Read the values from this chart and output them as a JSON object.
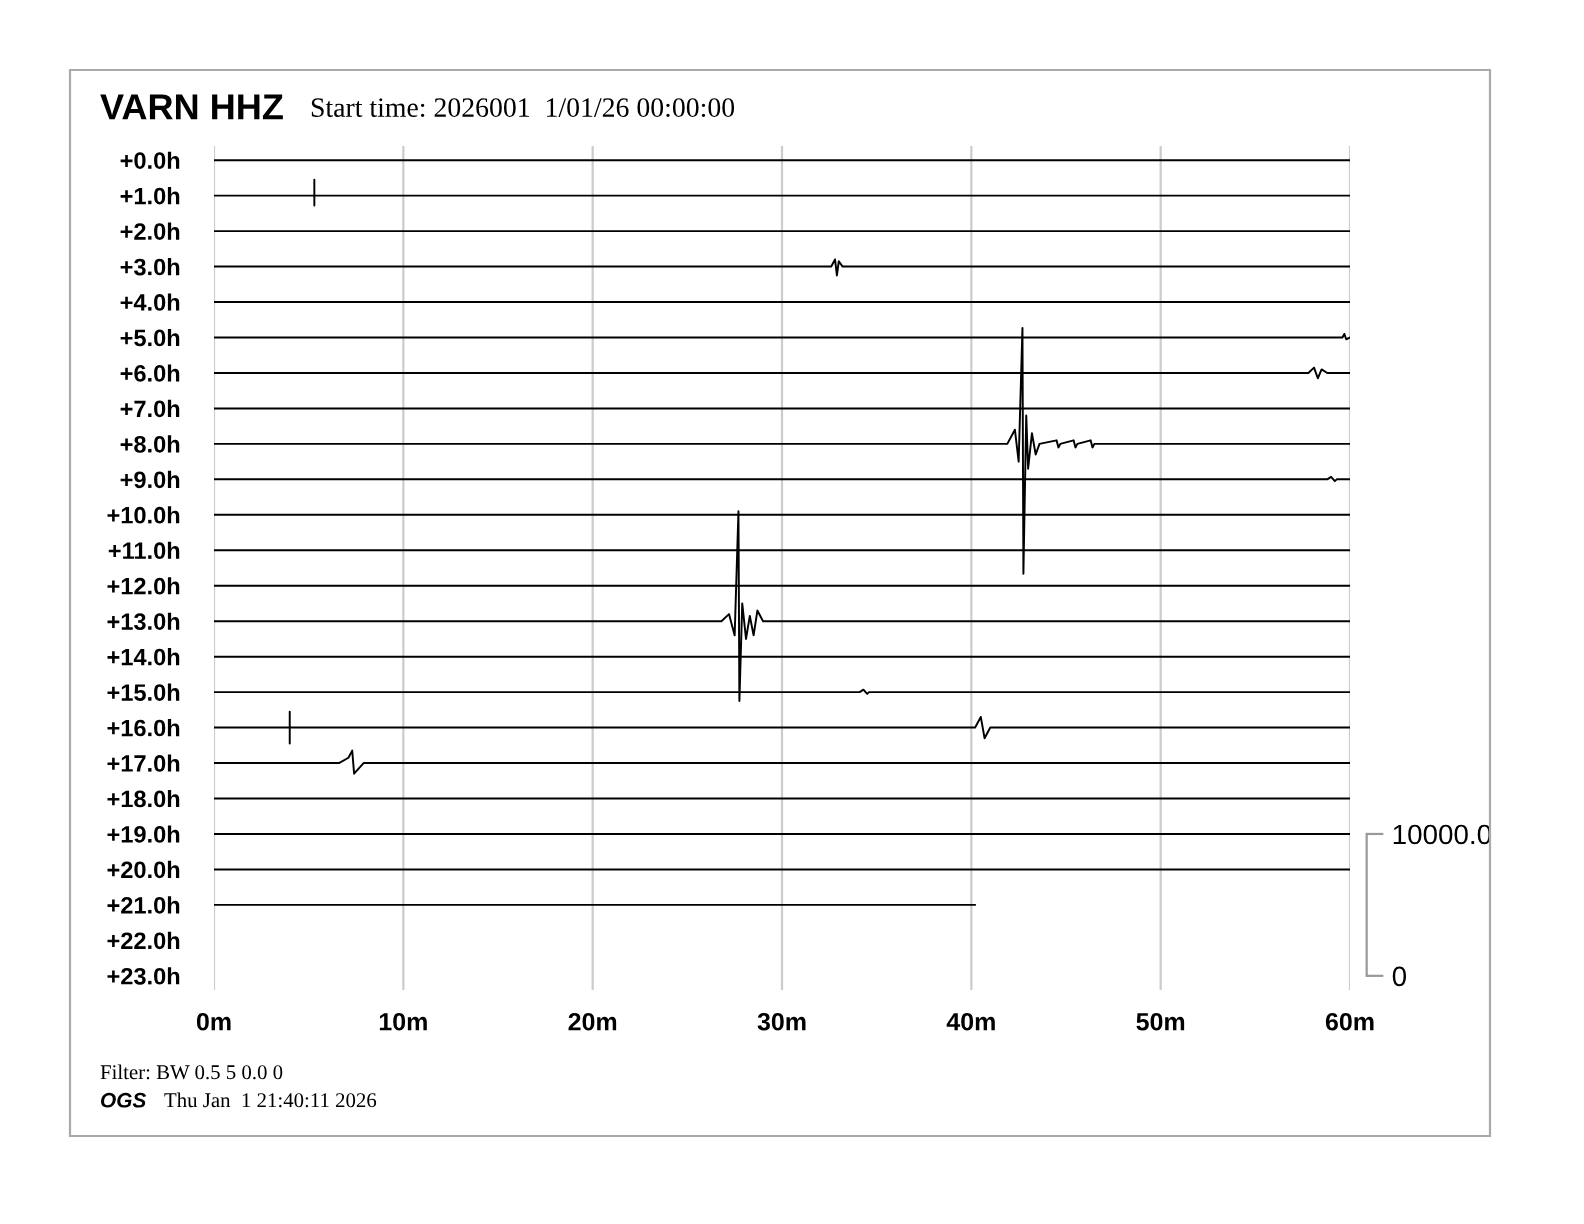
{
  "chart_data": {
    "type": "line",
    "title": "VARN HHZ",
    "subtitle": "Start time: 2026001  1/01/26 00:00:00",
    "annotations": [
      "Filter: BW 0.5 5 0.0 0",
      "OGS",
      "Thu Jan  1 21:40:11 2026"
    ],
    "xlim": [
      0,
      60
    ],
    "xticks": [
      {
        "value": 0,
        "label": "0m"
      },
      {
        "value": 10,
        "label": "10m"
      },
      {
        "value": 20,
        "label": "20m"
      },
      {
        "value": 30,
        "label": "30m"
      },
      {
        "value": 40,
        "label": "40m"
      },
      {
        "value": 50,
        "label": "50m"
      },
      {
        "value": 60,
        "label": "60m"
      }
    ],
    "ylim": [
      23.4,
      -0.4
    ],
    "yticks": [
      {
        "value": 0,
        "label": "+0.0h"
      },
      {
        "value": 1,
        "label": "+1.0h"
      },
      {
        "value": 2,
        "label": "+2.0h"
      },
      {
        "value": 3,
        "label": "+3.0h"
      },
      {
        "value": 4,
        "label": "+4.0h"
      },
      {
        "value": 5,
        "label": "+5.0h"
      },
      {
        "value": 6,
        "label": "+6.0h"
      },
      {
        "value": 7,
        "label": "+7.0h"
      },
      {
        "value": 8,
        "label": "+8.0h"
      },
      {
        "value": 9,
        "label": "+9.0h"
      },
      {
        "value": 10,
        "label": "+10.0h"
      },
      {
        "value": 11,
        "label": "+11.0h"
      },
      {
        "value": 12,
        "label": "+12.0h"
      },
      {
        "value": 13,
        "label": "+13.0h"
      },
      {
        "value": 14,
        "label": "+14.0h"
      },
      {
        "value": 15,
        "label": "+15.0h"
      },
      {
        "value": 16,
        "label": "+16.0h"
      },
      {
        "value": 17,
        "label": "+17.0h"
      },
      {
        "value": 18,
        "label": "+18.0h"
      },
      {
        "value": 19,
        "label": "+19.0h"
      },
      {
        "value": 20,
        "label": "+20.0h"
      },
      {
        "value": 21,
        "label": "+21.0h"
      },
      {
        "value": 22,
        "label": "+22.0h"
      },
      {
        "value": 23,
        "label": "+23.0h"
      }
    ],
    "y2lim": [
      -1000,
      58500
    ],
    "y2ticks": [
      0,
      {
        "value": 10000,
        "label": "10000.0"
      }
    ],
    "grid": "x",
    "series": [
      {
        "color": "#000000",
        "x": [
          0,
          60
        ],
        "values": [
          0,
          0
        ]
      },
      {
        "color": "#000000",
        "x": [
          0,
          5.3,
          5.3,
          5.3,
          5.3,
          60
        ],
        "values": [
          1,
          1,
          0.55,
          1.28,
          1,
          1
        ]
      },
      {
        "color": "#000000",
        "x": [
          0,
          60
        ],
        "values": [
          2,
          2
        ]
      },
      {
        "color": "#000000",
        "x": [
          0,
          32.6,
          32.8,
          32.9,
          33.0,
          33.2,
          60
        ],
        "values": [
          3,
          3,
          2.8,
          3.25,
          2.85,
          3,
          3
        ]
      },
      {
        "color": "#000000",
        "x": [
          0,
          60
        ],
        "values": [
          4,
          4
        ]
      },
      {
        "color": "#000000",
        "x": [
          0,
          59.6,
          59.7,
          59.8,
          60
        ],
        "values": [
          5,
          5,
          4.9,
          5.05,
          5
        ]
      },
      {
        "color": "#000000",
        "x": [
          0,
          57.8,
          58.1,
          58.3,
          58.5,
          58.8,
          60
        ],
        "values": [
          6,
          6,
          5.85,
          6.15,
          5.9,
          6,
          6
        ]
      },
      {
        "color": "#000000",
        "x": [
          0,
          60
        ],
        "values": [
          7,
          7
        ]
      },
      {
        "color": "#000000",
        "x": [
          0,
          41.9,
          42.3,
          42.5,
          42.7,
          42.75,
          42.9,
          43.0,
          43.2,
          43.4,
          43.6,
          44.5,
          44.6,
          44.7,
          45.4,
          45.5,
          45.6,
          46.3,
          46.4,
          46.5,
          60
        ],
        "values": [
          8,
          8,
          7.6,
          8.5,
          4.73,
          11.66,
          7.2,
          8.7,
          7.7,
          8.3,
          8,
          7.9,
          8.1,
          8,
          7.9,
          8.1,
          8,
          7.9,
          8.1,
          8,
          8
        ]
      },
      {
        "color": "#000000",
        "x": [
          0,
          58.8,
          59.0,
          59.2,
          59.3,
          60
        ],
        "values": [
          9,
          9,
          8.93,
          9.05,
          9,
          9
        ]
      },
      {
        "color": "#000000",
        "x": [
          0,
          60
        ],
        "values": [
          10,
          10
        ]
      },
      {
        "color": "#000000",
        "x": [
          0,
          60
        ],
        "values": [
          11,
          11
        ]
      },
      {
        "color": "#000000",
        "x": [
          0,
          60
        ],
        "values": [
          12,
          12
        ]
      },
      {
        "color": "#000000",
        "x": [
          0,
          26.8,
          27.2,
          27.5,
          27.7,
          27.75,
          27.9,
          28.1,
          28.3,
          28.5,
          28.7,
          29.0,
          60
        ],
        "values": [
          13,
          13,
          12.8,
          13.4,
          9.9,
          15.25,
          12.5,
          13.5,
          12.85,
          13.4,
          12.7,
          13,
          13
        ]
      },
      {
        "color": "#000000",
        "x": [
          0,
          60
        ],
        "values": [
          14,
          14
        ]
      },
      {
        "color": "#000000",
        "x": [
          0,
          34.1,
          34.3,
          34.5,
          34.6,
          60
        ],
        "values": [
          15,
          15,
          14.93,
          15.05,
          15,
          15
        ]
      },
      {
        "color": "#000000",
        "x": [
          0,
          4.0,
          4.0,
          4.0,
          4.0,
          40.2,
          40.5,
          40.7,
          41.0,
          60
        ],
        "values": [
          16,
          16,
          15.55,
          16.45,
          16,
          16,
          15.7,
          16.3,
          16,
          16
        ]
      },
      {
        "color": "#000000",
        "x": [
          0,
          6.6,
          7.1,
          7.3,
          7.4,
          7.9,
          60
        ],
        "values": [
          17,
          17,
          16.85,
          16.65,
          17.3,
          17,
          17
        ]
      },
      {
        "color": "#000000",
        "x": [
          0,
          60
        ],
        "values": [
          18,
          18
        ]
      },
      {
        "color": "#000000",
        "x": [
          0,
          60
        ],
        "values": [
          19,
          19
        ]
      },
      {
        "color": "#000000",
        "x": [
          0,
          60
        ],
        "values": [
          20,
          20
        ]
      },
      {
        "color": "#000000",
        "x": [
          0,
          40.2
        ],
        "values": [
          21,
          21
        ]
      }
    ]
  }
}
